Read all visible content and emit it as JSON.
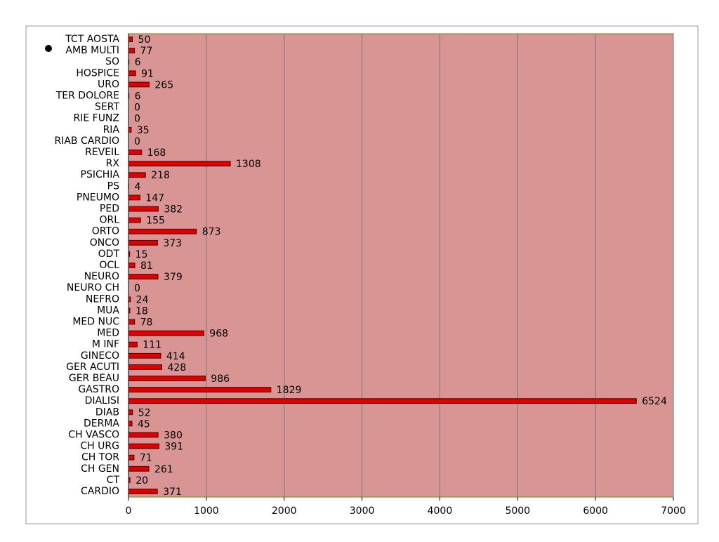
{
  "chart_data": {
    "type": "bar",
    "orientation": "horizontal",
    "categories": [
      "TCT AOSTA",
      "AMB MULTI",
      "SO",
      "HOSPICE",
      "URO",
      "TER DOLORE",
      "SERT",
      "RIE FUNZ",
      "RIA",
      "RIAB CARDIO",
      "REVEIL",
      "RX",
      "PSICHIA",
      "PS",
      "PNEUMO",
      "PED",
      "ORL",
      "ORTO",
      "ONCO",
      "ODT",
      "OCL",
      "NEURO",
      "NEURO CH",
      "NEFRO",
      "MUA",
      "MED NUC",
      "MED",
      "M INF",
      "GINECO",
      "GER ACUTI",
      "GER BEAU",
      "GASTRO",
      "DIALISI",
      "DIAB",
      "DERMA",
      "CH VASCO",
      "CH URG",
      "CH TOR",
      "CH GEN",
      "CT",
      "CARDIO"
    ],
    "values": [
      50,
      77,
      6,
      91,
      265,
      6,
      0,
      0,
      35,
      0,
      168,
      1308,
      218,
      4,
      147,
      382,
      155,
      873,
      373,
      15,
      81,
      379,
      0,
      24,
      18,
      78,
      968,
      111,
      414,
      428,
      986,
      1829,
      6524,
      52,
      45,
      380,
      391,
      71,
      261,
      20,
      371
    ],
    "color": "#e00000",
    "xlim": [
      0,
      7000
    ],
    "xticks": [
      0,
      1000,
      2000,
      3000,
      4000,
      5000,
      6000,
      7000
    ],
    "grid": true
  }
}
